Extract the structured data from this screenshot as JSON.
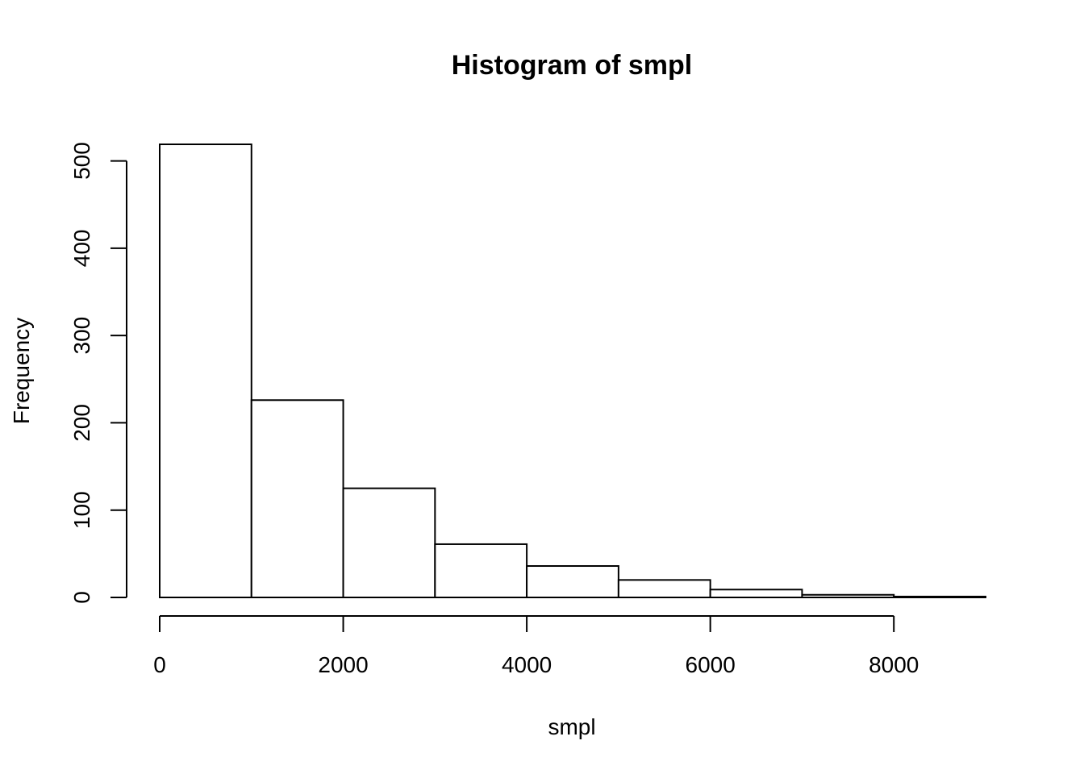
{
  "chart_data": {
    "type": "bar",
    "title": "Histogram of smpl",
    "xlabel": "smpl",
    "ylabel": "Frequency",
    "bin_edges": [
      0,
      1000,
      2000,
      3000,
      4000,
      5000,
      6000,
      7000,
      8000,
      9000
    ],
    "values": [
      519,
      226,
      125,
      61,
      36,
      20,
      9,
      3,
      1
    ],
    "xlim": [
      0,
      9000
    ],
    "ylim": [
      0,
      519
    ],
    "x_ticks": [
      0,
      2000,
      4000,
      6000,
      8000
    ],
    "y_ticks": [
      0,
      100,
      200,
      300,
      400,
      500
    ],
    "grid": false
  }
}
